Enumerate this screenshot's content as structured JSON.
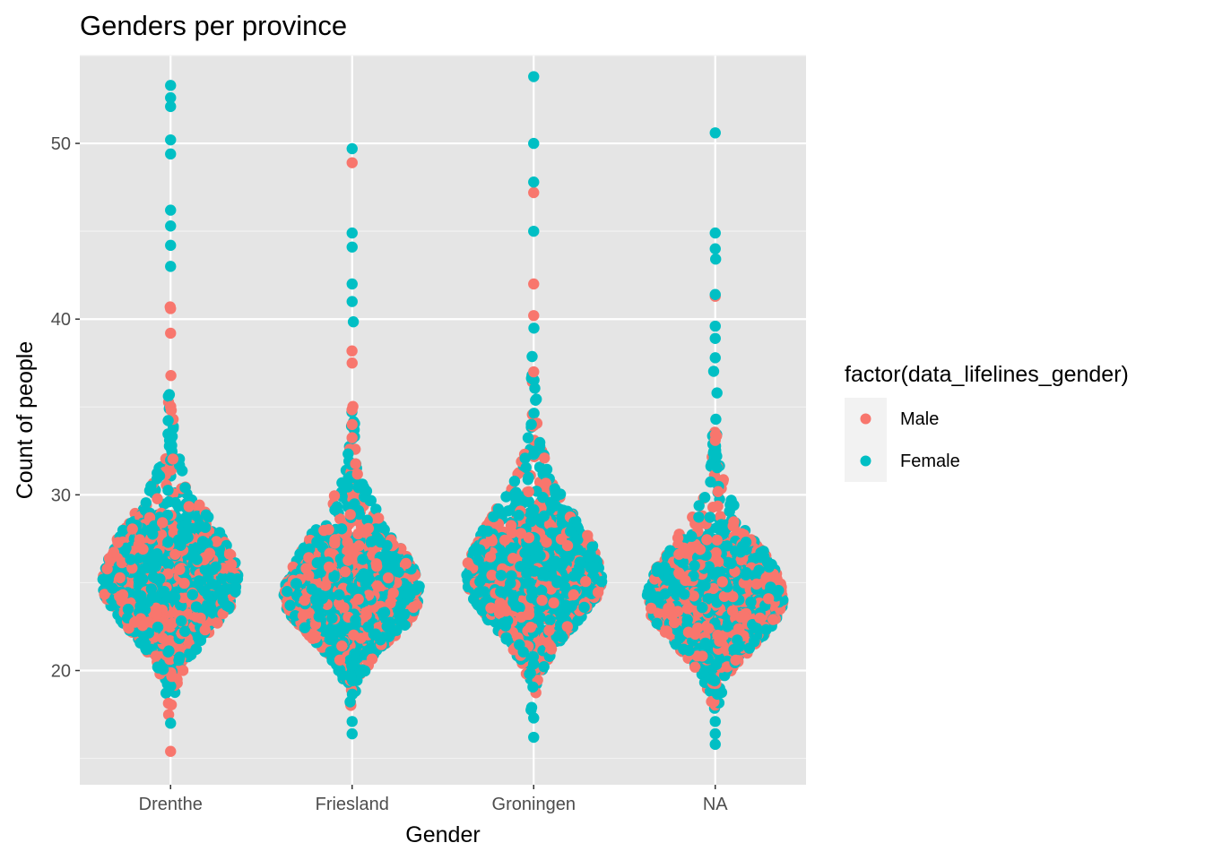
{
  "chart_data": {
    "type": "scatter",
    "subtype": "beeswarm",
    "title": "Genders per province",
    "xlabel": "Gender",
    "ylabel": "Count of people",
    "categories": [
      "Drenthe",
      "Friesland",
      "Groningen",
      "NA"
    ],
    "ylim": [
      13.5,
      55
    ],
    "yticks": [
      20,
      30,
      40,
      50
    ],
    "grid": true,
    "legend": {
      "title": "factor(data_lifelines_gender)",
      "position": "right",
      "entries": [
        {
          "label": "Male",
          "color": "#F8766D"
        },
        {
          "label": "Female",
          "color": "#00BFC4"
        }
      ]
    },
    "background": "#E5E5E5",
    "series": [
      {
        "name": "Male",
        "color": "#F8766D",
        "points": [
          {
            "x": "Drenthe",
            "y": 15.4
          },
          {
            "x": "Drenthe",
            "y": 40.6
          },
          {
            "x": "Drenthe",
            "y": 39.2
          },
          {
            "x": "Drenthe",
            "y": 35.0
          },
          {
            "x": "Friesland",
            "y": 48.9
          },
          {
            "x": "Friesland",
            "y": 37.5
          },
          {
            "x": "Friesland",
            "y": 34.0
          },
          {
            "x": "Groningen",
            "y": 47.2
          },
          {
            "x": "Groningen",
            "y": 42.0
          },
          {
            "x": "Groningen",
            "y": 40.2
          },
          {
            "x": "Groningen",
            "y": 37.0
          },
          {
            "x": "NA",
            "y": 41.3
          },
          {
            "x": "NA",
            "y": 33.1
          }
        ]
      },
      {
        "name": "Female",
        "color": "#00BFC4",
        "points": [
          {
            "x": "Drenthe",
            "y": 53.3
          },
          {
            "x": "Drenthe",
            "y": 52.6
          },
          {
            "x": "Drenthe",
            "y": 52.1
          },
          {
            "x": "Drenthe",
            "y": 50.2
          },
          {
            "x": "Drenthe",
            "y": 49.4
          },
          {
            "x": "Drenthe",
            "y": 46.2
          },
          {
            "x": "Drenthe",
            "y": 45.3
          },
          {
            "x": "Drenthe",
            "y": 44.2
          },
          {
            "x": "Drenthe",
            "y": 43.0
          },
          {
            "x": "Drenthe",
            "y": 17.0
          },
          {
            "x": "Friesland",
            "y": 49.7
          },
          {
            "x": "Friesland",
            "y": 44.9
          },
          {
            "x": "Friesland",
            "y": 44.1
          },
          {
            "x": "Friesland",
            "y": 42.0
          },
          {
            "x": "Friesland",
            "y": 41.0
          },
          {
            "x": "Friesland",
            "y": 16.4
          },
          {
            "x": "Friesland",
            "y": 17.1
          },
          {
            "x": "Groningen",
            "y": 53.8
          },
          {
            "x": "Groningen",
            "y": 50.0
          },
          {
            "x": "Groningen",
            "y": 47.8
          },
          {
            "x": "Groningen",
            "y": 45.0
          },
          {
            "x": "Groningen",
            "y": 16.2
          },
          {
            "x": "Groningen",
            "y": 17.3
          },
          {
            "x": "NA",
            "y": 50.6
          },
          {
            "x": "NA",
            "y": 44.9
          },
          {
            "x": "NA",
            "y": 44.0
          },
          {
            "x": "NA",
            "y": 41.4
          },
          {
            "x": "NA",
            "y": 39.6
          },
          {
            "x": "NA",
            "y": 38.9
          },
          {
            "x": "NA",
            "y": 37.8
          },
          {
            "x": "NA",
            "y": 15.8
          },
          {
            "x": "NA",
            "y": 16.4
          },
          {
            "x": "NA",
            "y": 17.1
          }
        ]
      }
    ],
    "groups": [
      {
        "category": "Drenthe",
        "center": 25.0,
        "spread_below": 4.2,
        "spread_above": 5.5,
        "male_share": 0.42
      },
      {
        "category": "Friesland",
        "center": 24.2,
        "spread_below": 3.6,
        "spread_above": 5.4,
        "male_share": 0.38
      },
      {
        "category": "Groningen",
        "center": 25.2,
        "spread_below": 4.0,
        "spread_above": 5.6,
        "male_share": 0.36
      },
      {
        "category": "NA",
        "center": 24.0,
        "spread_below": 3.8,
        "spread_above": 5.2,
        "male_share": 0.45
      }
    ]
  }
}
